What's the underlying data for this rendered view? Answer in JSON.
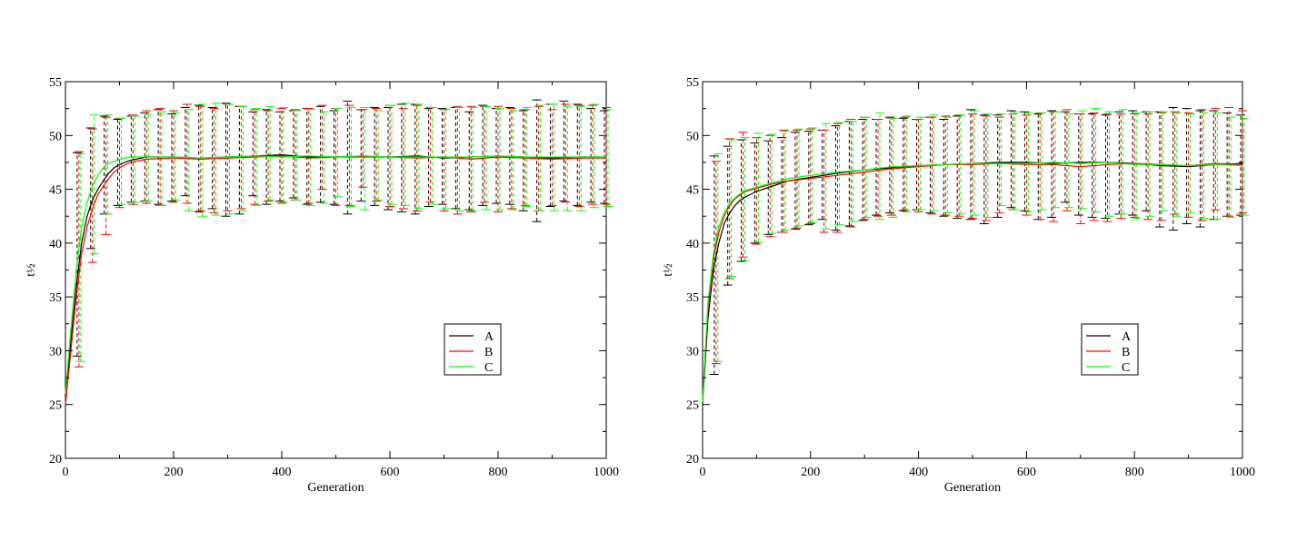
{
  "chart_data": [
    {
      "type": "line",
      "xlabel": "Generation",
      "ylabel": "t½",
      "xlim": [
        0,
        1000
      ],
      "ylim": [
        20,
        55
      ],
      "xticks": [
        0,
        200,
        400,
        600,
        800,
        1000
      ],
      "yticks": [
        20,
        25,
        30,
        35,
        40,
        45,
        50,
        55
      ],
      "legend_position": "lower-right",
      "grid": false,
      "error_bars": true,
      "series": [
        {
          "name": "A",
          "color": "#000000",
          "x": [
            0,
            10,
            20,
            30,
            40,
            50,
            60,
            70,
            80,
            90,
            100,
            120,
            150,
            200,
            250,
            300,
            350,
            400,
            450,
            500,
            550,
            600,
            650,
            700,
            750,
            800,
            850,
            900,
            950,
            1000
          ],
          "y": [
            25.5,
            31,
            36,
            40,
            42.5,
            44,
            45,
            45.8,
            46.5,
            47,
            47.3,
            47.7,
            48,
            48,
            47.9,
            48,
            48.1,
            48.2,
            48,
            48,
            48.1,
            48,
            48.1,
            47.9,
            48,
            48.1,
            48,
            47.9,
            48,
            48
          ],
          "err_x": [
            25,
            50,
            75,
            100,
            125,
            150,
            175,
            200,
            225,
            250,
            275,
            300,
            325,
            350,
            375,
            400,
            425,
            450,
            475,
            500,
            525,
            550,
            575,
            600,
            625,
            650,
            675,
            700,
            725,
            750,
            775,
            800,
            825,
            850,
            875,
            900,
            925,
            950,
            975,
            1000
          ],
          "err_low": [
            29.5,
            39.5,
            42.7,
            43.5,
            43.8,
            43.9,
            43.6,
            43.9,
            44.4,
            42.9,
            43.2,
            42.5,
            42.7,
            44.4,
            43.6,
            43.9,
            44.2,
            43.6,
            43.8,
            43.6,
            42.7,
            43.9,
            43.5,
            43.1,
            42.9,
            42.7,
            43.4,
            43.6,
            43.2,
            43.1,
            43.5,
            43.7,
            43.6,
            43.0,
            42.0,
            43.4,
            43.9,
            43.5,
            43.8,
            43.7
          ],
          "err_high": [
            48.4,
            50.7,
            51.8,
            51.5,
            51.8,
            52.1,
            52.4,
            52.0,
            52.6,
            52.8,
            52.6,
            53.0,
            52.7,
            52.2,
            52.4,
            52.2,
            52.3,
            52.5,
            52.7,
            52.3,
            53.2,
            52.4,
            52.6,
            52.6,
            52.9,
            52.9,
            52.5,
            52.5,
            52.6,
            52.2,
            52.8,
            52.5,
            52.6,
            52.3,
            53.3,
            52.9,
            53.2,
            52.9,
            52.5,
            52.3
          ]
        },
        {
          "name": "B",
          "color": "#ff0000",
          "x": [
            0,
            10,
            20,
            30,
            40,
            50,
            60,
            70,
            80,
            90,
            100,
            120,
            150,
            200,
            250,
            300,
            350,
            400,
            450,
            500,
            550,
            600,
            650,
            700,
            750,
            800,
            850,
            900,
            950,
            1000
          ],
          "y": [
            25,
            30,
            35,
            39,
            41.5,
            43.2,
            44.5,
            45.3,
            46,
            46.6,
            47,
            47.5,
            47.8,
            47.9,
            47.8,
            47.9,
            48,
            48.1,
            47.9,
            48,
            48,
            48,
            47.9,
            48,
            47.8,
            48,
            47.9,
            47.8,
            47.9,
            47.9
          ],
          "err_x": [
            25,
            50,
            75,
            100,
            125,
            150,
            175,
            200,
            225,
            250,
            275,
            300,
            325,
            350,
            375,
            400,
            425,
            450,
            475,
            500,
            525,
            550,
            575,
            600,
            625,
            650,
            675,
            700,
            725,
            750,
            775,
            800,
            825,
            850,
            875,
            900,
            925,
            950,
            975,
            1000
          ],
          "err_low": [
            28.5,
            38.2,
            40.8,
            43.3,
            43.6,
            43.7,
            43.5,
            43.8,
            43.7,
            43.0,
            42.8,
            43.0,
            43.2,
            43.6,
            43.9,
            43.7,
            44.0,
            43.7,
            45.0,
            43.5,
            43.5,
            45.2,
            43.9,
            43.4,
            43.2,
            43.0,
            43.8,
            43.0,
            42.7,
            42.9,
            43.8,
            42.9,
            43.2,
            43.5,
            43.0,
            43.5,
            43.8,
            43.4,
            43.6,
            43.6
          ],
          "err_high": [
            48.5,
            50.6,
            51.7,
            51.6,
            51.9,
            52.3,
            52.5,
            52.3,
            52.9,
            52.7,
            52.5,
            52.9,
            52.7,
            52.4,
            52.3,
            52.5,
            52.4,
            52.5,
            52.8,
            52.5,
            52.8,
            52.4,
            52.5,
            52.8,
            52.5,
            52.8,
            52.6,
            52.4,
            52.7,
            52.7,
            52.7,
            52.7,
            52.5,
            52.4,
            52.7,
            52.4,
            52.9,
            52.8,
            52.8,
            52.6
          ]
        },
        {
          "name": "C",
          "color": "#00ff00",
          "x": [
            0,
            10,
            20,
            30,
            40,
            50,
            60,
            70,
            80,
            90,
            100,
            120,
            150,
            200,
            250,
            300,
            350,
            400,
            450,
            500,
            550,
            600,
            650,
            700,
            750,
            800,
            850,
            900,
            950,
            1000
          ],
          "y": [
            26,
            32,
            37.5,
            41.5,
            43.8,
            45.3,
            46.3,
            47,
            47.4,
            47.6,
            47.8,
            48,
            48,
            48,
            47.9,
            48,
            48.1,
            48,
            48.1,
            48,
            48.1,
            48,
            48,
            48,
            48,
            48.1,
            48,
            48,
            48,
            48
          ],
          "err_x": [
            25,
            50,
            75,
            100,
            125,
            150,
            175,
            200,
            225,
            250,
            275,
            300,
            325,
            350,
            375,
            400,
            425,
            450,
            475,
            500,
            525,
            550,
            575,
            600,
            625,
            650,
            675,
            700,
            725,
            750,
            775,
            800,
            825,
            850,
            875,
            900,
            925,
            950,
            975,
            1000
          ],
          "err_low": [
            29.0,
            39.0,
            42.7,
            43.6,
            43.8,
            43.9,
            43.5,
            44.0,
            43.0,
            42.5,
            42.6,
            42.7,
            43.0,
            43.5,
            44.0,
            43.8,
            44.0,
            43.5,
            43.7,
            44.3,
            43.4,
            43.1,
            44.0,
            43.6,
            43.5,
            43.2,
            43.6,
            43.2,
            43.0,
            43.0,
            43.1,
            43.1,
            43.1,
            43.4,
            43.0,
            43.0,
            43.0,
            43.0,
            43.3,
            43.4
          ],
          "err_high": [
            48.3,
            51.9,
            51.9,
            51.6,
            51.8,
            51.9,
            52.2,
            52.1,
            52.4,
            52.9,
            53.0,
            52.9,
            52.7,
            52.5,
            52.7,
            52.6,
            52.3,
            52.4,
            52.2,
            52.5,
            52.6,
            52.6,
            52.3,
            52.8,
            53.0,
            52.9,
            52.6,
            52.4,
            52.6,
            52.6,
            52.7,
            52.5,
            52.3,
            52.6,
            52.8,
            52.9,
            52.7,
            52.7,
            52.9,
            52.4
          ]
        }
      ]
    },
    {
      "type": "line",
      "xlabel": "Generation",
      "ylabel": "t½",
      "xlim": [
        0,
        1000
      ],
      "ylim": [
        20,
        55
      ],
      "xticks": [
        0,
        200,
        400,
        600,
        800,
        1000
      ],
      "yticks": [
        20,
        25,
        30,
        35,
        40,
        45,
        50,
        55
      ],
      "legend_position": "lower-right",
      "grid": false,
      "error_bars": true,
      "series": [
        {
          "name": "A",
          "color": "#000000",
          "x": [
            0,
            10,
            20,
            30,
            40,
            50,
            60,
            70,
            80,
            100,
            130,
            160,
            200,
            250,
            300,
            350,
            400,
            450,
            500,
            550,
            600,
            650,
            700,
            750,
            800,
            850,
            900,
            950,
            1000
          ],
          "y": [
            25,
            33,
            37.5,
            40,
            41.8,
            42.8,
            43.5,
            44,
            44.3,
            44.8,
            45.3,
            45.8,
            46.1,
            46.5,
            46.8,
            47,
            47.2,
            47.3,
            47.4,
            47.5,
            47.5,
            47.4,
            47.5,
            47.5,
            47.4,
            47.2,
            47.1,
            47.3,
            47.4
          ]
        },
        {
          "name": "B",
          "color": "#ff0000",
          "x": [
            0,
            10,
            20,
            30,
            40,
            50,
            60,
            70,
            80,
            100,
            130,
            160,
            200,
            250,
            300,
            350,
            400,
            450,
            500,
            550,
            600,
            650,
            700,
            750,
            800,
            850,
            900,
            950,
            1000
          ],
          "y": [
            25.5,
            34,
            38.5,
            41,
            42.5,
            43.5,
            44.1,
            44.5,
            44.8,
            45.1,
            45.5,
            45.8,
            46,
            46.3,
            46.6,
            46.9,
            47.1,
            47.3,
            47.3,
            47.4,
            47.3,
            47.3,
            47.1,
            47.3,
            47.4,
            47.3,
            47.2,
            47.4,
            47.3
          ]
        },
        {
          "name": "C",
          "color": "#00ff00",
          "x": [
            0,
            10,
            20,
            30,
            40,
            50,
            60,
            70,
            80,
            100,
            130,
            160,
            200,
            250,
            300,
            350,
            400,
            450,
            500,
            550,
            600,
            650,
            700,
            750,
            800,
            850,
            900,
            950,
            1000
          ],
          "y": [
            25.2,
            34.5,
            39,
            41.5,
            42.8,
            43.7,
            44.2,
            44.6,
            44.9,
            45.2,
            45.6,
            46,
            46.3,
            46.6,
            46.8,
            47.1,
            47.2,
            47.3,
            47.4,
            47.4,
            47.4,
            47.5,
            47.4,
            47.5,
            47.3,
            47.3,
            47.2,
            47.3,
            47.2
          ]
        }
      ],
      "err_x": [
        25,
        50,
        75,
        100,
        125,
        150,
        175,
        200,
        225,
        250,
        275,
        300,
        325,
        350,
        375,
        400,
        425,
        450,
        475,
        500,
        525,
        550,
        575,
        600,
        625,
        650,
        675,
        700,
        725,
        750,
        775,
        800,
        825,
        850,
        875,
        900,
        925,
        950,
        975,
        1000
      ],
      "err_low": [
        [
          27.8,
          36.1,
          38.3,
          40.0,
          40.8,
          41.0,
          41.3,
          41.7,
          42.2,
          41.2,
          41.6,
          42.1,
          42.6,
          42.8,
          43.0,
          43.1,
          42.8,
          42.5,
          42.3,
          42.2,
          41.8,
          42.4,
          43.3,
          43.0,
          42.2,
          42.4,
          43.8,
          42.6,
          42.4,
          42.3,
          42.7,
          42.6,
          43.0,
          41.5,
          41.2,
          41.8,
          41.5,
          42.2,
          42.5,
          42.6
        ],
        [
          28.8,
          36.7,
          38.7,
          39.9,
          40.6,
          41.0,
          41.4,
          41.8,
          41.0,
          41.0,
          41.5,
          42.2,
          42.5,
          42.6,
          43.1,
          42.9,
          42.7,
          42.6,
          42.5,
          42.3,
          42.1,
          42.8,
          43.1,
          42.6,
          42.2,
          42.0,
          43.0,
          41.8,
          42.1,
          42.0,
          42.3,
          42.4,
          42.2,
          42.1,
          42.7,
          42.4,
          42.1,
          43.1,
          42.5,
          42.8
        ],
        [
          29.0,
          36.9,
          38.4,
          40.1,
          40.9,
          41.2,
          41.6,
          41.9,
          41.3,
          41.7,
          42.0,
          42.4,
          42.2,
          42.4,
          42.9,
          43.1,
          43.0,
          42.8,
          42.7,
          42.6,
          42.4,
          43.5,
          43.1,
          42.9,
          43.1,
          43.3,
          43.3,
          43.2,
          42.9,
          42.5,
          42.7,
          42.3,
          42.5,
          43.0,
          42.5,
          42.8,
          42.3,
          42.2,
          42.4,
          42.6
        ]
      ],
      "err_high": [
        [
          48.1,
          49.0,
          49.6,
          49.3,
          49.5,
          49.8,
          50.3,
          50.4,
          50.5,
          50.9,
          51.3,
          51.5,
          51.5,
          51.7,
          51.6,
          51.5,
          51.7,
          51.5,
          51.8,
          52.4,
          51.9,
          51.9,
          52.3,
          52.2,
          52.0,
          52.3,
          52.2,
          52.0,
          52.0,
          51.9,
          52.2,
          52.3,
          52.2,
          52.2,
          52.6,
          52.5,
          52.3,
          52.3,
          52.1,
          51.9
        ],
        [
          47.6,
          49.7,
          50.3,
          49.8,
          50.0,
          50.5,
          50.5,
          50.6,
          50.5,
          51.1,
          51.5,
          51.7,
          51.5,
          51.6,
          51.7,
          51.5,
          51.7,
          51.8,
          51.9,
          52.0,
          51.8,
          51.7,
          52.0,
          51.9,
          52.1,
          52.2,
          52.4,
          52.0,
          52.1,
          52.0,
          52.0,
          52.0,
          52.0,
          52.1,
          52.2,
          52.1,
          52.4,
          52.5,
          52.6,
          52.3
        ],
        [
          48.3,
          49.6,
          49.8,
          50.2,
          50.1,
          50.4,
          50.6,
          50.7,
          51.1,
          51.2,
          51.3,
          51.7,
          52.1,
          51.6,
          51.8,
          51.7,
          51.9,
          51.7,
          51.9,
          52.3,
          52.0,
          52.0,
          52.2,
          52.1,
          52.1,
          52.2,
          52.0,
          52.3,
          52.5,
          52.2,
          52.4,
          52.1,
          52.2,
          52.2,
          52.1,
          52.0,
          52.1,
          52.1,
          51.7,
          51.6
        ]
      ]
    }
  ]
}
